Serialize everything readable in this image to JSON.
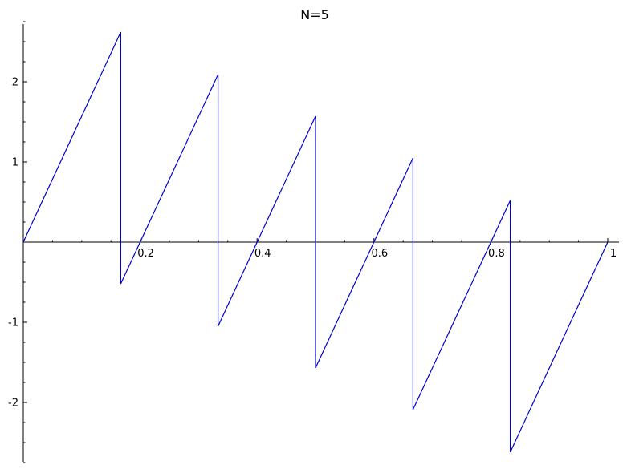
{
  "chart_data": {
    "type": "line",
    "title": "N=5",
    "xlabel": "",
    "ylabel": "",
    "xlim": [
      0,
      1.02
    ],
    "ylim": [
      -2.75,
      2.72
    ],
    "grid": false,
    "x_ticks": [
      {
        "value": 0.2,
        "label": "0.2"
      },
      {
        "value": 0.4,
        "label": "0.4"
      },
      {
        "value": 0.6,
        "label": "0.6"
      },
      {
        "value": 0.8,
        "label": "0.8"
      },
      {
        "value": 1.0,
        "label": "1"
      }
    ],
    "y_ticks": [
      {
        "value": 2,
        "label": "2"
      },
      {
        "value": 1,
        "label": "1"
      },
      {
        "value": -1,
        "label": "-1"
      },
      {
        "value": -2,
        "label": "-2"
      }
    ],
    "series": [
      {
        "color": "#0000cc",
        "x": [
          0,
          0.1667,
          0.1667,
          0.3333,
          0.3333,
          0.5,
          0.5,
          0.6667,
          0.6667,
          0.8333,
          0.8333,
          1.0
        ],
        "y": [
          0,
          2.62,
          -0.52,
          2.09,
          -1.05,
          1.57,
          -1.57,
          1.05,
          -2.09,
          0.52,
          -2.62,
          0
        ]
      }
    ]
  }
}
